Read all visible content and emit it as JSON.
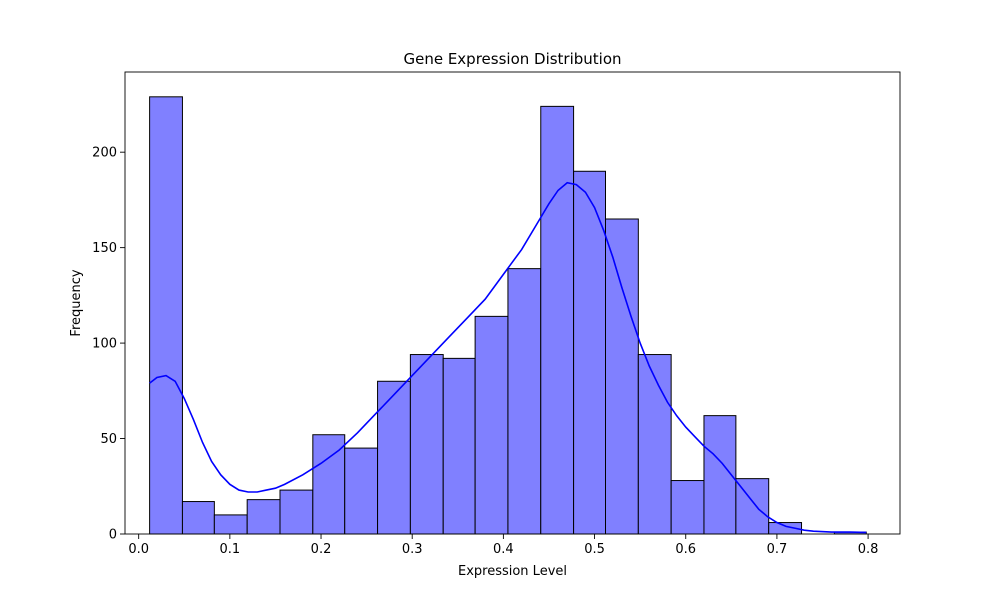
{
  "chart_data": {
    "type": "bar",
    "subtype": "histogram-with-kde",
    "title": "Gene Expression Distribution",
    "xlabel": "Expression Level",
    "ylabel": "Frequency",
    "xlim": [
      -0.015,
      0.835
    ],
    "ylim": [
      0,
      242
    ],
    "x_ticks": [
      0.0,
      0.1,
      0.2,
      0.3,
      0.4,
      0.5,
      0.6,
      0.7,
      0.8
    ],
    "x_tick_labels": [
      "0.0",
      "0.1",
      "0.2",
      "0.3",
      "0.4",
      "0.5",
      "0.6",
      "0.7",
      "0.8"
    ],
    "y_ticks": [
      0,
      50,
      100,
      150,
      200
    ],
    "y_tick_labels": [
      "0",
      "50",
      "100",
      "150",
      "200"
    ],
    "bin_edges": [
      0.012,
      0.048,
      0.083,
      0.119,
      0.155,
      0.191,
      0.226,
      0.262,
      0.298,
      0.334,
      0.369,
      0.405,
      0.441,
      0.477,
      0.512,
      0.548,
      0.584,
      0.62,
      0.655,
      0.691,
      0.727,
      0.763,
      0.798
    ],
    "values": [
      229,
      17,
      10,
      18,
      23,
      52,
      45,
      80,
      94,
      92,
      114,
      139,
      224,
      190,
      165,
      94,
      28,
      62,
      29,
      6,
      0,
      1
    ],
    "kde": {
      "x": [
        0.012,
        0.02,
        0.03,
        0.04,
        0.05,
        0.06,
        0.07,
        0.08,
        0.09,
        0.1,
        0.11,
        0.12,
        0.13,
        0.14,
        0.15,
        0.16,
        0.18,
        0.2,
        0.22,
        0.24,
        0.26,
        0.28,
        0.3,
        0.32,
        0.34,
        0.36,
        0.38,
        0.4,
        0.42,
        0.44,
        0.45,
        0.46,
        0.47,
        0.48,
        0.49,
        0.5,
        0.51,
        0.52,
        0.53,
        0.54,
        0.55,
        0.56,
        0.57,
        0.58,
        0.59,
        0.6,
        0.61,
        0.62,
        0.63,
        0.64,
        0.65,
        0.66,
        0.67,
        0.68,
        0.69,
        0.7,
        0.71,
        0.72,
        0.73,
        0.74,
        0.76,
        0.78,
        0.798
      ],
      "y": [
        79,
        82,
        83,
        80,
        71,
        60,
        48,
        38,
        31,
        26,
        23,
        22,
        22,
        23,
        24,
        26,
        31,
        37,
        44,
        53,
        63,
        73,
        83,
        93,
        103,
        113,
        123,
        136,
        149,
        165,
        173,
        180,
        184,
        183,
        179,
        171,
        159,
        145,
        129,
        114,
        100,
        88,
        78,
        69,
        62,
        56,
        51,
        46,
        42,
        37,
        31,
        25,
        19,
        13,
        9,
        6,
        4,
        3,
        2,
        1.5,
        1,
        1,
        0.8
      ]
    },
    "colors": {
      "bar_fill": "#8080ff",
      "bar_edge": "#000000",
      "kde_line": "#0000ff"
    },
    "grid": false,
    "legend": "none"
  }
}
